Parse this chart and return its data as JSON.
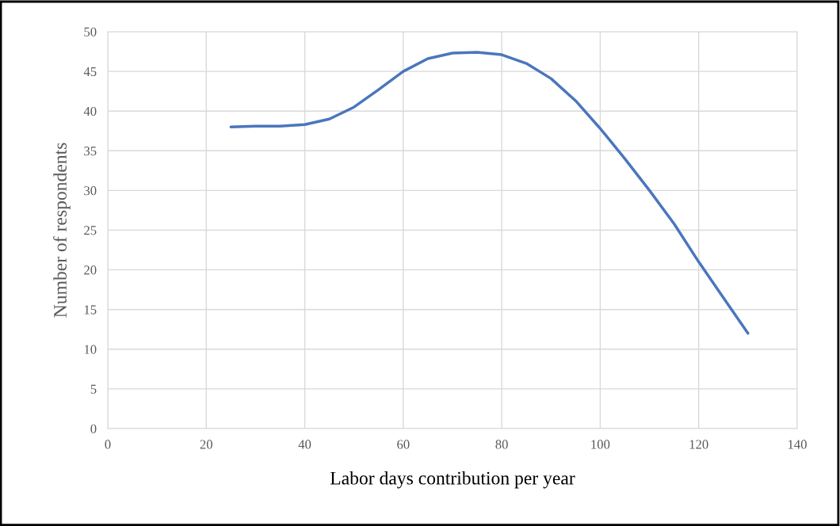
{
  "chart_data": {
    "type": "line",
    "xlabel": "Labor days contribution per year",
    "ylabel": "Number of respondents",
    "series": [
      {
        "color": "#4a76bd",
        "x": [
          25,
          30,
          35,
          40,
          45,
          50,
          55,
          60,
          65,
          70,
          75,
          80,
          85,
          90,
          95,
          100,
          105,
          110,
          115,
          120,
          125,
          130
        ],
        "values": [
          38,
          38.1,
          38.1,
          38.3,
          39,
          40.5,
          42.7,
          45,
          46.6,
          47.3,
          47.4,
          47.1,
          46,
          44.1,
          41.3,
          37.8,
          34,
          30,
          25.8,
          21,
          16.5,
          12
        ]
      }
    ],
    "xlim": [
      0,
      140
    ],
    "xticks": [
      0,
      20,
      40,
      60,
      80,
      100,
      120,
      140
    ],
    "ylim": [
      0,
      50
    ],
    "yticks": [
      0,
      5,
      10,
      15,
      20,
      25,
      30,
      35,
      40,
      45,
      50
    ],
    "grid": true,
    "marker": "none",
    "line_style": "solid"
  }
}
